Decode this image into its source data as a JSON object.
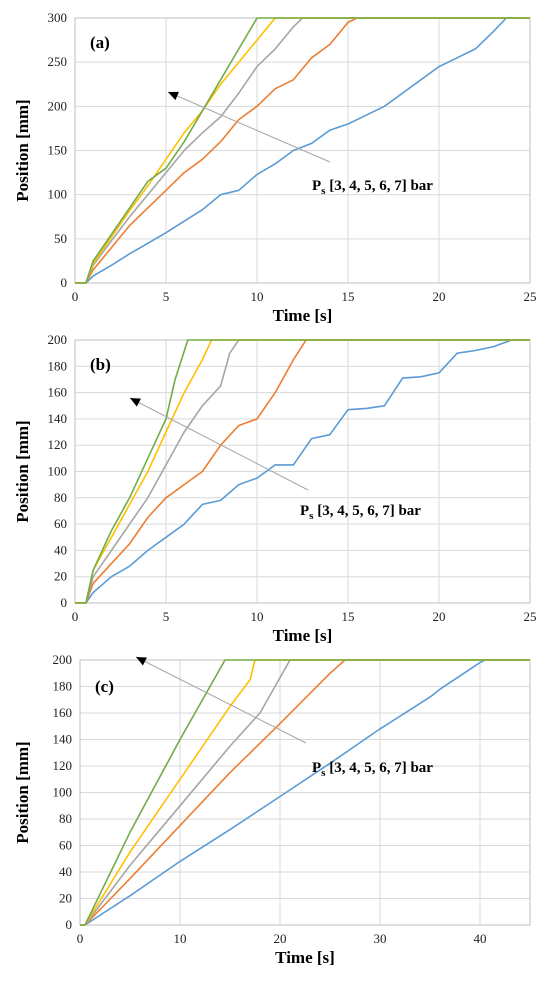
{
  "series_colors": [
    "#5B9BD5",
    "#ED7D31",
    "#A5A5A5",
    "#FFC000",
    "#70AD47"
  ],
  "chart_data": [
    {
      "type": "line",
      "panel_label": "(a)",
      "xlabel": "Time [s]",
      "ylabel": "Position [mm]",
      "xlim": [
        0,
        25
      ],
      "ylim": [
        0,
        300
      ],
      "xticks": [
        0,
        5,
        10,
        15,
        20,
        25
      ],
      "yticks": [
        0,
        50,
        100,
        150,
        200,
        250,
        300
      ],
      "grid": true,
      "annotation": {
        "text_main": "P",
        "text_sub": "s",
        "text_rest": " [3, 4, 5, 6, 7] bar"
      },
      "series": [
        {
          "values": [
            [
              0,
              0
            ],
            [
              0.6,
              0
            ],
            [
              1,
              8
            ],
            [
              2,
              20
            ],
            [
              3,
              33
            ],
            [
              4,
              45
            ],
            [
              5,
              57
            ],
            [
              6,
              70
            ],
            [
              7,
              83
            ],
            [
              8,
              100
            ],
            [
              9,
              105
            ],
            [
              10,
              123
            ],
            [
              11,
              135
            ],
            [
              12,
              150
            ],
            [
              13,
              158
            ],
            [
              14,
              173
            ],
            [
              15,
              180
            ],
            [
              16,
              190
            ],
            [
              17,
              200
            ],
            [
              18,
              215
            ],
            [
              19,
              230
            ],
            [
              20,
              245
            ],
            [
              21,
              255
            ],
            [
              22,
              265
            ],
            [
              23,
              285
            ],
            [
              23.7,
              300
            ],
            [
              25,
              300
            ]
          ]
        },
        {
          "values": [
            [
              0,
              0
            ],
            [
              0.6,
              0
            ],
            [
              1,
              15
            ],
            [
              2,
              40
            ],
            [
              3,
              65
            ],
            [
              4,
              85
            ],
            [
              5,
              105
            ],
            [
              6,
              125
            ],
            [
              7,
              140
            ],
            [
              8,
              160
            ],
            [
              9,
              185
            ],
            [
              10,
              200
            ],
            [
              11,
              220
            ],
            [
              12,
              230
            ],
            [
              13,
              255
            ],
            [
              14,
              270
            ],
            [
              15,
              295
            ],
            [
              15.5,
              300
            ],
            [
              25,
              300
            ]
          ]
        },
        {
          "values": [
            [
              0,
              0
            ],
            [
              0.6,
              0
            ],
            [
              1,
              20
            ],
            [
              2,
              48
            ],
            [
              3,
              75
            ],
            [
              4,
              100
            ],
            [
              5,
              125
            ],
            [
              6,
              150
            ],
            [
              7,
              170
            ],
            [
              8,
              188
            ],
            [
              9,
              215
            ],
            [
              10,
              245
            ],
            [
              11,
              265
            ],
            [
              12,
              290
            ],
            [
              12.5,
              300
            ],
            [
              25,
              300
            ]
          ]
        },
        {
          "values": [
            [
              0,
              0
            ],
            [
              0.6,
              0
            ],
            [
              1,
              22
            ],
            [
              2,
              52
            ],
            [
              3,
              82
            ],
            [
              4,
              110
            ],
            [
              5,
              140
            ],
            [
              6,
              170
            ],
            [
              7,
              195
            ],
            [
              8,
              225
            ],
            [
              9,
              250
            ],
            [
              10,
              275
            ],
            [
              11,
              300
            ],
            [
              25,
              300
            ]
          ]
        },
        {
          "values": [
            [
              0,
              0
            ],
            [
              0.6,
              0
            ],
            [
              1,
              25
            ],
            [
              2,
              55
            ],
            [
              3,
              85
            ],
            [
              4,
              115
            ],
            [
              5,
              130
            ],
            [
              6,
              160
            ],
            [
              7,
              195
            ],
            [
              8,
              230
            ],
            [
              9,
              265
            ],
            [
              10,
              300
            ],
            [
              25,
              300
            ]
          ]
        }
      ]
    },
    {
      "type": "line",
      "panel_label": "(b)",
      "xlabel": "Time [s]",
      "ylabel": "Position [mm]",
      "xlim": [
        0,
        25
      ],
      "ylim": [
        0,
        200
      ],
      "xticks": [
        0,
        5,
        10,
        15,
        20,
        25
      ],
      "yticks": [
        0,
        20,
        40,
        60,
        80,
        100,
        120,
        140,
        160,
        180,
        200
      ],
      "grid": true,
      "annotation": {
        "text_main": "P",
        "text_sub": "s",
        "text_rest": " [3, 4, 5, 6, 7] bar"
      },
      "series": [
        {
          "values": [
            [
              0,
              0
            ],
            [
              0.6,
              0
            ],
            [
              1,
              8
            ],
            [
              2,
              20
            ],
            [
              3,
              28
            ],
            [
              4,
              40
            ],
            [
              5,
              50
            ],
            [
              6,
              60
            ],
            [
              7,
              75
            ],
            [
              8,
              78
            ],
            [
              9,
              90
            ],
            [
              10,
              95
            ],
            [
              11,
              105
            ],
            [
              12,
              105
            ],
            [
              13,
              125
            ],
            [
              14,
              128
            ],
            [
              15,
              147
            ],
            [
              16,
              148
            ],
            [
              17,
              150
            ],
            [
              18,
              171
            ],
            [
              19,
              172
            ],
            [
              20,
              175
            ],
            [
              21,
              190
            ],
            [
              22,
              192
            ],
            [
              23,
              195
            ],
            [
              24,
              200
            ],
            [
              25,
              200
            ]
          ]
        },
        {
          "values": [
            [
              0,
              0
            ],
            [
              0.6,
              0
            ],
            [
              1,
              15
            ],
            [
              2,
              30
            ],
            [
              3,
              45
            ],
            [
              4,
              65
            ],
            [
              5,
              80
            ],
            [
              6,
              90
            ],
            [
              7,
              100
            ],
            [
              8,
              120
            ],
            [
              9,
              135
            ],
            [
              10,
              140
            ],
            [
              11,
              160
            ],
            [
              12,
              185
            ],
            [
              12.7,
              200
            ],
            [
              25,
              200
            ]
          ]
        },
        {
          "values": [
            [
              0,
              0
            ],
            [
              0.6,
              0
            ],
            [
              1,
              20
            ],
            [
              2,
              40
            ],
            [
              3,
              60
            ],
            [
              4,
              80
            ],
            [
              5,
              105
            ],
            [
              6,
              130
            ],
            [
              7,
              150
            ],
            [
              8,
              165
            ],
            [
              8.5,
              190
            ],
            [
              9,
              200
            ],
            [
              25,
              200
            ]
          ]
        },
        {
          "values": [
            [
              0,
              0
            ],
            [
              0.6,
              0
            ],
            [
              1,
              25
            ],
            [
              2,
              50
            ],
            [
              3,
              75
            ],
            [
              4,
              100
            ],
            [
              5,
              130
            ],
            [
              6,
              160
            ],
            [
              7,
              185
            ],
            [
              7.5,
              200
            ],
            [
              25,
              200
            ]
          ]
        },
        {
          "values": [
            [
              0,
              0
            ],
            [
              0.6,
              0
            ],
            [
              1,
              25
            ],
            [
              2,
              55
            ],
            [
              3,
              80
            ],
            [
              4,
              110
            ],
            [
              5,
              140
            ],
            [
              5.5,
              170
            ],
            [
              6.2,
              200
            ],
            [
              25,
              200
            ]
          ]
        }
      ]
    },
    {
      "type": "line",
      "panel_label": "(c)",
      "xlabel": "Time [s]",
      "ylabel": "Position [mm]",
      "xlim": [
        0,
        45
      ],
      "ylim": [
        0,
        200
      ],
      "xticks": [
        0,
        10,
        20,
        30,
        40
      ],
      "yticks": [
        0,
        20,
        40,
        60,
        80,
        100,
        120,
        140,
        160,
        180,
        200
      ],
      "grid": true,
      "annotation": {
        "text_main": "P",
        "text_sub": "s",
        "text_rest": " [3, 4, 5, 6, 7] bar"
      },
      "series": [
        {
          "values": [
            [
              0,
              0
            ],
            [
              0.5,
              0
            ],
            [
              5,
              22
            ],
            [
              10,
              48
            ],
            [
              15,
              72
            ],
            [
              20,
              97
            ],
            [
              25,
              122
            ],
            [
              30,
              148
            ],
            [
              35,
              172
            ],
            [
              36,
              178
            ],
            [
              40,
              198
            ],
            [
              40.5,
              200
            ],
            [
              45,
              200
            ]
          ]
        },
        {
          "values": [
            [
              0,
              0
            ],
            [
              0.5,
              0
            ],
            [
              5,
              35
            ],
            [
              10,
              75
            ],
            [
              15,
              115
            ],
            [
              20,
              152
            ],
            [
              25,
              190
            ],
            [
              26.5,
              200
            ],
            [
              45,
              200
            ]
          ]
        },
        {
          "values": [
            [
              0,
              0
            ],
            [
              0.5,
              0
            ],
            [
              5,
              45
            ],
            [
              10,
              90
            ],
            [
              15,
              135
            ],
            [
              18,
              160
            ],
            [
              21,
              200
            ],
            [
              45,
              200
            ]
          ]
        },
        {
          "values": [
            [
              0,
              0
            ],
            [
              0.5,
              0
            ],
            [
              5,
              55
            ],
            [
              10,
              110
            ],
            [
              15,
              165
            ],
            [
              17,
              185
            ],
            [
              17.5,
              200
            ],
            [
              45,
              200
            ]
          ]
        },
        {
          "values": [
            [
              0,
              0
            ],
            [
              0.5,
              0
            ],
            [
              5,
              70
            ],
            [
              10,
              140
            ],
            [
              13,
              180
            ],
            [
              14.5,
              200
            ],
            [
              45,
              200
            ]
          ]
        }
      ]
    }
  ]
}
